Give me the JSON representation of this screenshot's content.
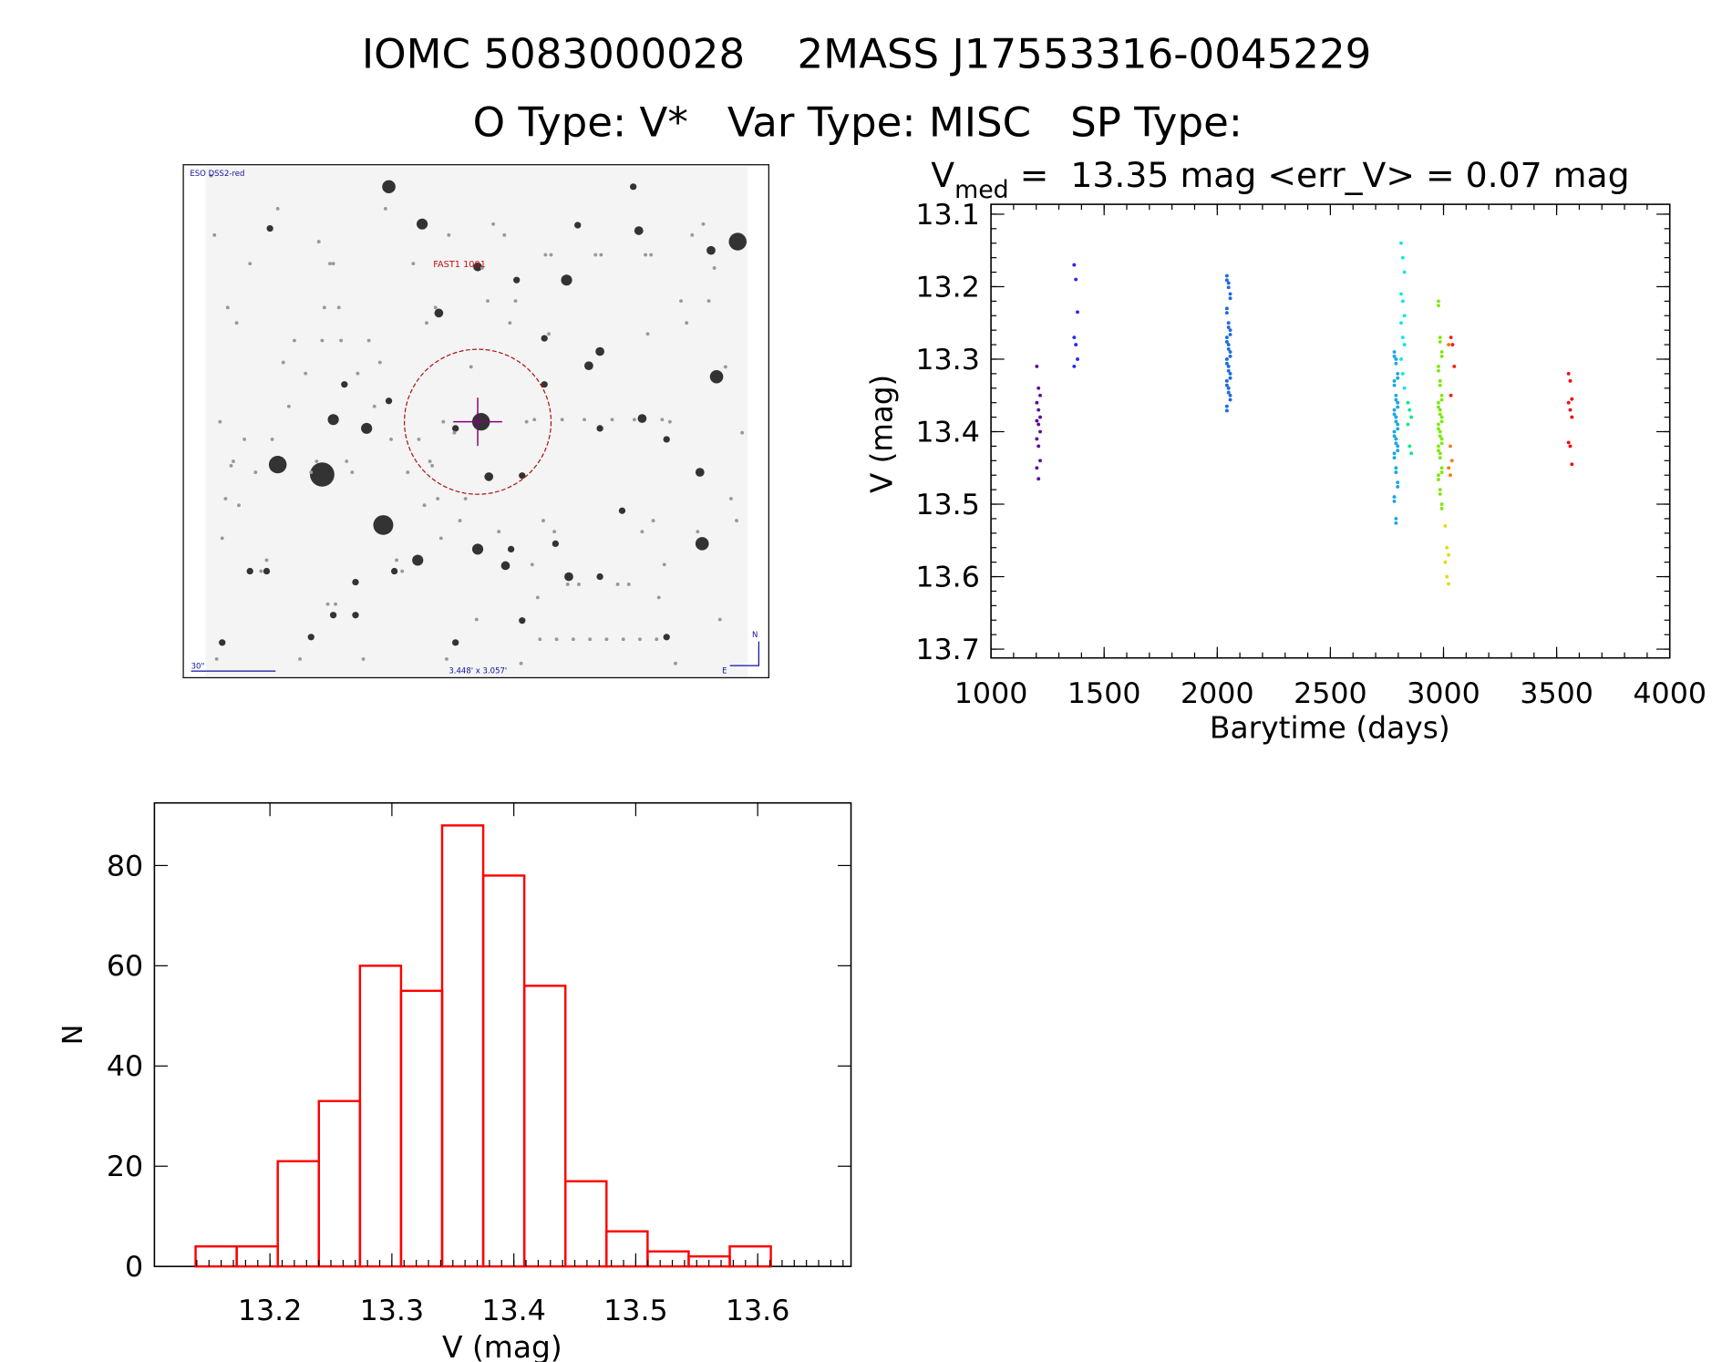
{
  "header": {
    "title": "IOMC 5083000028    2MASS J17553316-0045229",
    "subtitle": "O Type: V*   Var Type: MISC   SP Type:"
  },
  "finder": {
    "survey_label": "ESO DSS2-red",
    "target_label": "FAST1 1001",
    "scale_label": "30\"",
    "fov_label": "3.448' x 3.057'",
    "north_label": "N",
    "east_label": "E"
  },
  "chart_data": [
    {
      "type": "scatter",
      "title_prefix": "V",
      "title_sub": "med",
      "title_rest": " =  13.35 mag <err_V> = 0.07 mag",
      "xlabel": "Barytime (days)",
      "ylabel": "V (mag)",
      "xlim": [
        1000,
        4000
      ],
      "ylim": [
        13.7,
        13.1
      ],
      "xticks": [
        "1000",
        "1500",
        "2000",
        "2500",
        "3000",
        "3500",
        "4000"
      ],
      "yticks": [
        "13.1",
        "13.2",
        "13.3",
        "13.4",
        "13.5",
        "13.6",
        "13.7"
      ],
      "series": [
        {
          "name": "g1",
          "color": "#5a0f9a",
          "x": 1210,
          "y": [
            13.31,
            13.34,
            13.35,
            13.36,
            13.37,
            13.38,
            13.385,
            13.39,
            13.4,
            13.41,
            13.42,
            13.44,
            13.45,
            13.465
          ]
        },
        {
          "name": "g2",
          "color": "#2a2aee",
          "x": 1375,
          "y": [
            13.17,
            13.19,
            13.235,
            13.27,
            13.28,
            13.3,
            13.31
          ]
        },
        {
          "name": "g3",
          "color": "#1a6de0",
          "x": 2050,
          "y": [
            13.185,
            13.195,
            13.21,
            13.23,
            13.25,
            13.26,
            13.27,
            13.28,
            13.29,
            13.3,
            13.31,
            13.32,
            13.33,
            13.34,
            13.35,
            13.365
          ]
        },
        {
          "name": "g4",
          "color": "#18a8e8",
          "x": 2790,
          "y": [
            13.29,
            13.3,
            13.32,
            13.33,
            13.35,
            13.36,
            13.37,
            13.38,
            13.39,
            13.4,
            13.41,
            13.42,
            13.43,
            13.45,
            13.47,
            13.49,
            13.52
          ]
        },
        {
          "name": "g5",
          "color": "#10e8e8",
          "x": 2820,
          "y": [
            13.14,
            13.16,
            13.18,
            13.21,
            13.22,
            13.24,
            13.25,
            13.27,
            13.28,
            13.3,
            13.32,
            13.34
          ]
        },
        {
          "name": "g6",
          "color": "#10e890",
          "x": 2850,
          "y": [
            13.36,
            13.37,
            13.38,
            13.39,
            13.42,
            13.43
          ]
        },
        {
          "name": "g7",
          "color": "#80e810",
          "x": 2985,
          "y": [
            13.22,
            13.27,
            13.29,
            13.31,
            13.33,
            13.35,
            13.36,
            13.37,
            13.38,
            13.39,
            13.4,
            13.41,
            13.42,
            13.43,
            13.45,
            13.46,
            13.48,
            13.5
          ]
        },
        {
          "name": "g8",
          "color": "#e8d810",
          "x": 3015,
          "y": [
            13.53,
            13.56,
            13.57,
            13.58,
            13.6,
            13.61
          ]
        },
        {
          "name": "g9",
          "color": "#f08010",
          "x": 3030,
          "y": [
            13.28,
            13.42,
            13.44,
            13.45,
            13.46
          ]
        },
        {
          "name": "g10",
          "color": "#f02010",
          "x": 3040,
          "y": [
            13.27,
            13.28,
            13.31,
            13.35
          ]
        },
        {
          "name": "g11",
          "color": "#f01010",
          "x": 3560,
          "y": [
            13.32,
            13.33,
            13.355,
            13.36,
            13.37,
            13.38,
            13.415,
            13.42,
            13.445
          ]
        }
      ]
    },
    {
      "type": "bar",
      "xlabel": "V (mag)",
      "ylabel": "N",
      "xlim": [
        13.1,
        13.67
      ],
      "ylim": [
        0,
        92
      ],
      "xticks": [
        "13.2",
        "13.3",
        "13.4",
        "13.5",
        "13.6"
      ],
      "yticks": [
        "0",
        "20",
        "40",
        "60",
        "80"
      ],
      "bin_start": 13.139,
      "bin_width": 0.0337,
      "values": [
        4,
        4,
        21,
        33,
        60,
        55,
        88,
        78,
        56,
        17,
        7,
        3,
        2,
        4
      ],
      "color": "#ff0000"
    }
  ]
}
